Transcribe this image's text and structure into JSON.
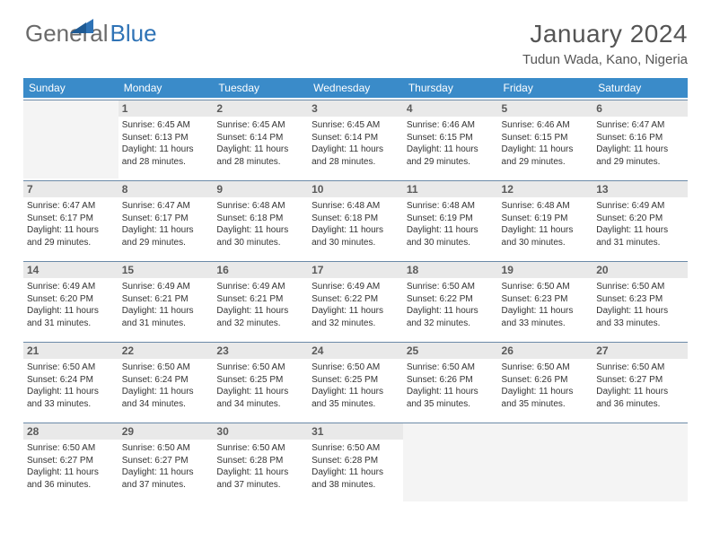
{
  "brand": {
    "part1": "General",
    "part2": "Blue",
    "color_text": "#6a6a6a",
    "color_accent": "#2f73b6"
  },
  "title": "January 2024",
  "location": "Tudun Wada, Kano, Nigeria",
  "weekday_labels": [
    "Sunday",
    "Monday",
    "Tuesday",
    "Wednesday",
    "Thursday",
    "Friday",
    "Saturday"
  ],
  "colors": {
    "header_bg": "#3a8bc9",
    "header_fg": "#ffffff",
    "daybar_bg": "#e9e9e9",
    "daybar_fg": "#5a5a5a",
    "cell_border": "#6b8aa8",
    "empty_bg": "#f4f4f4",
    "body_text": "#333333",
    "title_text": "#555555"
  },
  "typography": {
    "title_fontsize": 28,
    "location_fontsize": 15,
    "weekday_fontsize": 12,
    "daynum_fontsize": 12,
    "body_fontsize": 10,
    "brand_fontsize": 26
  },
  "grid": {
    "cols": 7,
    "rows": 5,
    "first_weekday_offset": 1,
    "days_in_month": 31
  },
  "days": [
    {
      "n": 1,
      "sunrise": "Sunrise: 6:45 AM",
      "sunset": "Sunset: 6:13 PM",
      "dl1": "Daylight: 11 hours",
      "dl2": "and 28 minutes."
    },
    {
      "n": 2,
      "sunrise": "Sunrise: 6:45 AM",
      "sunset": "Sunset: 6:14 PM",
      "dl1": "Daylight: 11 hours",
      "dl2": "and 28 minutes."
    },
    {
      "n": 3,
      "sunrise": "Sunrise: 6:45 AM",
      "sunset": "Sunset: 6:14 PM",
      "dl1": "Daylight: 11 hours",
      "dl2": "and 28 minutes."
    },
    {
      "n": 4,
      "sunrise": "Sunrise: 6:46 AM",
      "sunset": "Sunset: 6:15 PM",
      "dl1": "Daylight: 11 hours",
      "dl2": "and 29 minutes."
    },
    {
      "n": 5,
      "sunrise": "Sunrise: 6:46 AM",
      "sunset": "Sunset: 6:15 PM",
      "dl1": "Daylight: 11 hours",
      "dl2": "and 29 minutes."
    },
    {
      "n": 6,
      "sunrise": "Sunrise: 6:47 AM",
      "sunset": "Sunset: 6:16 PM",
      "dl1": "Daylight: 11 hours",
      "dl2": "and 29 minutes."
    },
    {
      "n": 7,
      "sunrise": "Sunrise: 6:47 AM",
      "sunset": "Sunset: 6:17 PM",
      "dl1": "Daylight: 11 hours",
      "dl2": "and 29 minutes."
    },
    {
      "n": 8,
      "sunrise": "Sunrise: 6:47 AM",
      "sunset": "Sunset: 6:17 PM",
      "dl1": "Daylight: 11 hours",
      "dl2": "and 29 minutes."
    },
    {
      "n": 9,
      "sunrise": "Sunrise: 6:48 AM",
      "sunset": "Sunset: 6:18 PM",
      "dl1": "Daylight: 11 hours",
      "dl2": "and 30 minutes."
    },
    {
      "n": 10,
      "sunrise": "Sunrise: 6:48 AM",
      "sunset": "Sunset: 6:18 PM",
      "dl1": "Daylight: 11 hours",
      "dl2": "and 30 minutes."
    },
    {
      "n": 11,
      "sunrise": "Sunrise: 6:48 AM",
      "sunset": "Sunset: 6:19 PM",
      "dl1": "Daylight: 11 hours",
      "dl2": "and 30 minutes."
    },
    {
      "n": 12,
      "sunrise": "Sunrise: 6:48 AM",
      "sunset": "Sunset: 6:19 PM",
      "dl1": "Daylight: 11 hours",
      "dl2": "and 30 minutes."
    },
    {
      "n": 13,
      "sunrise": "Sunrise: 6:49 AM",
      "sunset": "Sunset: 6:20 PM",
      "dl1": "Daylight: 11 hours",
      "dl2": "and 31 minutes."
    },
    {
      "n": 14,
      "sunrise": "Sunrise: 6:49 AM",
      "sunset": "Sunset: 6:20 PM",
      "dl1": "Daylight: 11 hours",
      "dl2": "and 31 minutes."
    },
    {
      "n": 15,
      "sunrise": "Sunrise: 6:49 AM",
      "sunset": "Sunset: 6:21 PM",
      "dl1": "Daylight: 11 hours",
      "dl2": "and 31 minutes."
    },
    {
      "n": 16,
      "sunrise": "Sunrise: 6:49 AM",
      "sunset": "Sunset: 6:21 PM",
      "dl1": "Daylight: 11 hours",
      "dl2": "and 32 minutes."
    },
    {
      "n": 17,
      "sunrise": "Sunrise: 6:49 AM",
      "sunset": "Sunset: 6:22 PM",
      "dl1": "Daylight: 11 hours",
      "dl2": "and 32 minutes."
    },
    {
      "n": 18,
      "sunrise": "Sunrise: 6:50 AM",
      "sunset": "Sunset: 6:22 PM",
      "dl1": "Daylight: 11 hours",
      "dl2": "and 32 minutes."
    },
    {
      "n": 19,
      "sunrise": "Sunrise: 6:50 AM",
      "sunset": "Sunset: 6:23 PM",
      "dl1": "Daylight: 11 hours",
      "dl2": "and 33 minutes."
    },
    {
      "n": 20,
      "sunrise": "Sunrise: 6:50 AM",
      "sunset": "Sunset: 6:23 PM",
      "dl1": "Daylight: 11 hours",
      "dl2": "and 33 minutes."
    },
    {
      "n": 21,
      "sunrise": "Sunrise: 6:50 AM",
      "sunset": "Sunset: 6:24 PM",
      "dl1": "Daylight: 11 hours",
      "dl2": "and 33 minutes."
    },
    {
      "n": 22,
      "sunrise": "Sunrise: 6:50 AM",
      "sunset": "Sunset: 6:24 PM",
      "dl1": "Daylight: 11 hours",
      "dl2": "and 34 minutes."
    },
    {
      "n": 23,
      "sunrise": "Sunrise: 6:50 AM",
      "sunset": "Sunset: 6:25 PM",
      "dl1": "Daylight: 11 hours",
      "dl2": "and 34 minutes."
    },
    {
      "n": 24,
      "sunrise": "Sunrise: 6:50 AM",
      "sunset": "Sunset: 6:25 PM",
      "dl1": "Daylight: 11 hours",
      "dl2": "and 35 minutes."
    },
    {
      "n": 25,
      "sunrise": "Sunrise: 6:50 AM",
      "sunset": "Sunset: 6:26 PM",
      "dl1": "Daylight: 11 hours",
      "dl2": "and 35 minutes."
    },
    {
      "n": 26,
      "sunrise": "Sunrise: 6:50 AM",
      "sunset": "Sunset: 6:26 PM",
      "dl1": "Daylight: 11 hours",
      "dl2": "and 35 minutes."
    },
    {
      "n": 27,
      "sunrise": "Sunrise: 6:50 AM",
      "sunset": "Sunset: 6:27 PM",
      "dl1": "Daylight: 11 hours",
      "dl2": "and 36 minutes."
    },
    {
      "n": 28,
      "sunrise": "Sunrise: 6:50 AM",
      "sunset": "Sunset: 6:27 PM",
      "dl1": "Daylight: 11 hours",
      "dl2": "and 36 minutes."
    },
    {
      "n": 29,
      "sunrise": "Sunrise: 6:50 AM",
      "sunset": "Sunset: 6:27 PM",
      "dl1": "Daylight: 11 hours",
      "dl2": "and 37 minutes."
    },
    {
      "n": 30,
      "sunrise": "Sunrise: 6:50 AM",
      "sunset": "Sunset: 6:28 PM",
      "dl1": "Daylight: 11 hours",
      "dl2": "and 37 minutes."
    },
    {
      "n": 31,
      "sunrise": "Sunrise: 6:50 AM",
      "sunset": "Sunset: 6:28 PM",
      "dl1": "Daylight: 11 hours",
      "dl2": "and 38 minutes."
    }
  ]
}
